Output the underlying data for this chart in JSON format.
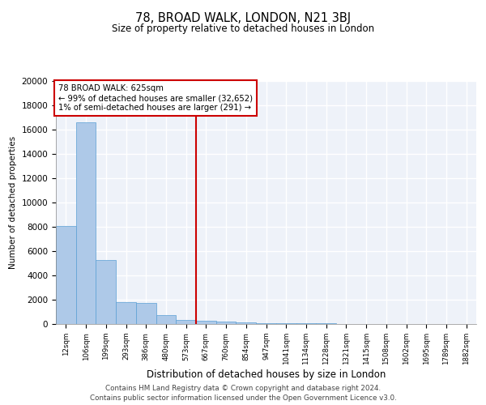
{
  "title": "78, BROAD WALK, LONDON, N21 3BJ",
  "subtitle": "Size of property relative to detached houses in London",
  "xlabel": "Distribution of detached houses by size in London",
  "ylabel": "Number of detached properties",
  "bar_color": "#aec9e8",
  "bar_edge_color": "#5a9fd4",
  "background_color": "#eef2f9",
  "grid_color": "#ffffff",
  "bin_labels": [
    "12sqm",
    "106sqm",
    "199sqm",
    "293sqm",
    "386sqm",
    "480sqm",
    "573sqm",
    "667sqm",
    "760sqm",
    "854sqm",
    "947sqm",
    "1041sqm",
    "1134sqm",
    "1228sqm",
    "1321sqm",
    "1415sqm",
    "1508sqm",
    "1602sqm",
    "1695sqm",
    "1789sqm",
    "1882sqm"
  ],
  "bar_heights": [
    8100,
    16600,
    5300,
    1800,
    1750,
    750,
    350,
    280,
    200,
    150,
    100,
    70,
    50,
    40,
    30,
    20,
    15,
    12,
    10,
    8,
    5
  ],
  "red_line_x": 6.5,
  "ylim": [
    0,
    20000
  ],
  "yticks": [
    0,
    2000,
    4000,
    6000,
    8000,
    10000,
    12000,
    14000,
    16000,
    18000,
    20000
  ],
  "annotation_title": "78 BROAD WALK: 625sqm",
  "annotation_line1": "← 99% of detached houses are smaller (32,652)",
  "annotation_line2": "1% of semi-detached houses are larger (291) →",
  "annotation_box_color": "#ffffff",
  "annotation_border_color": "#cc0000",
  "red_line_color": "#cc0000",
  "footer_line1": "Contains HM Land Registry data © Crown copyright and database right 2024.",
  "footer_line2": "Contains public sector information licensed under the Open Government Licence v3.0."
}
